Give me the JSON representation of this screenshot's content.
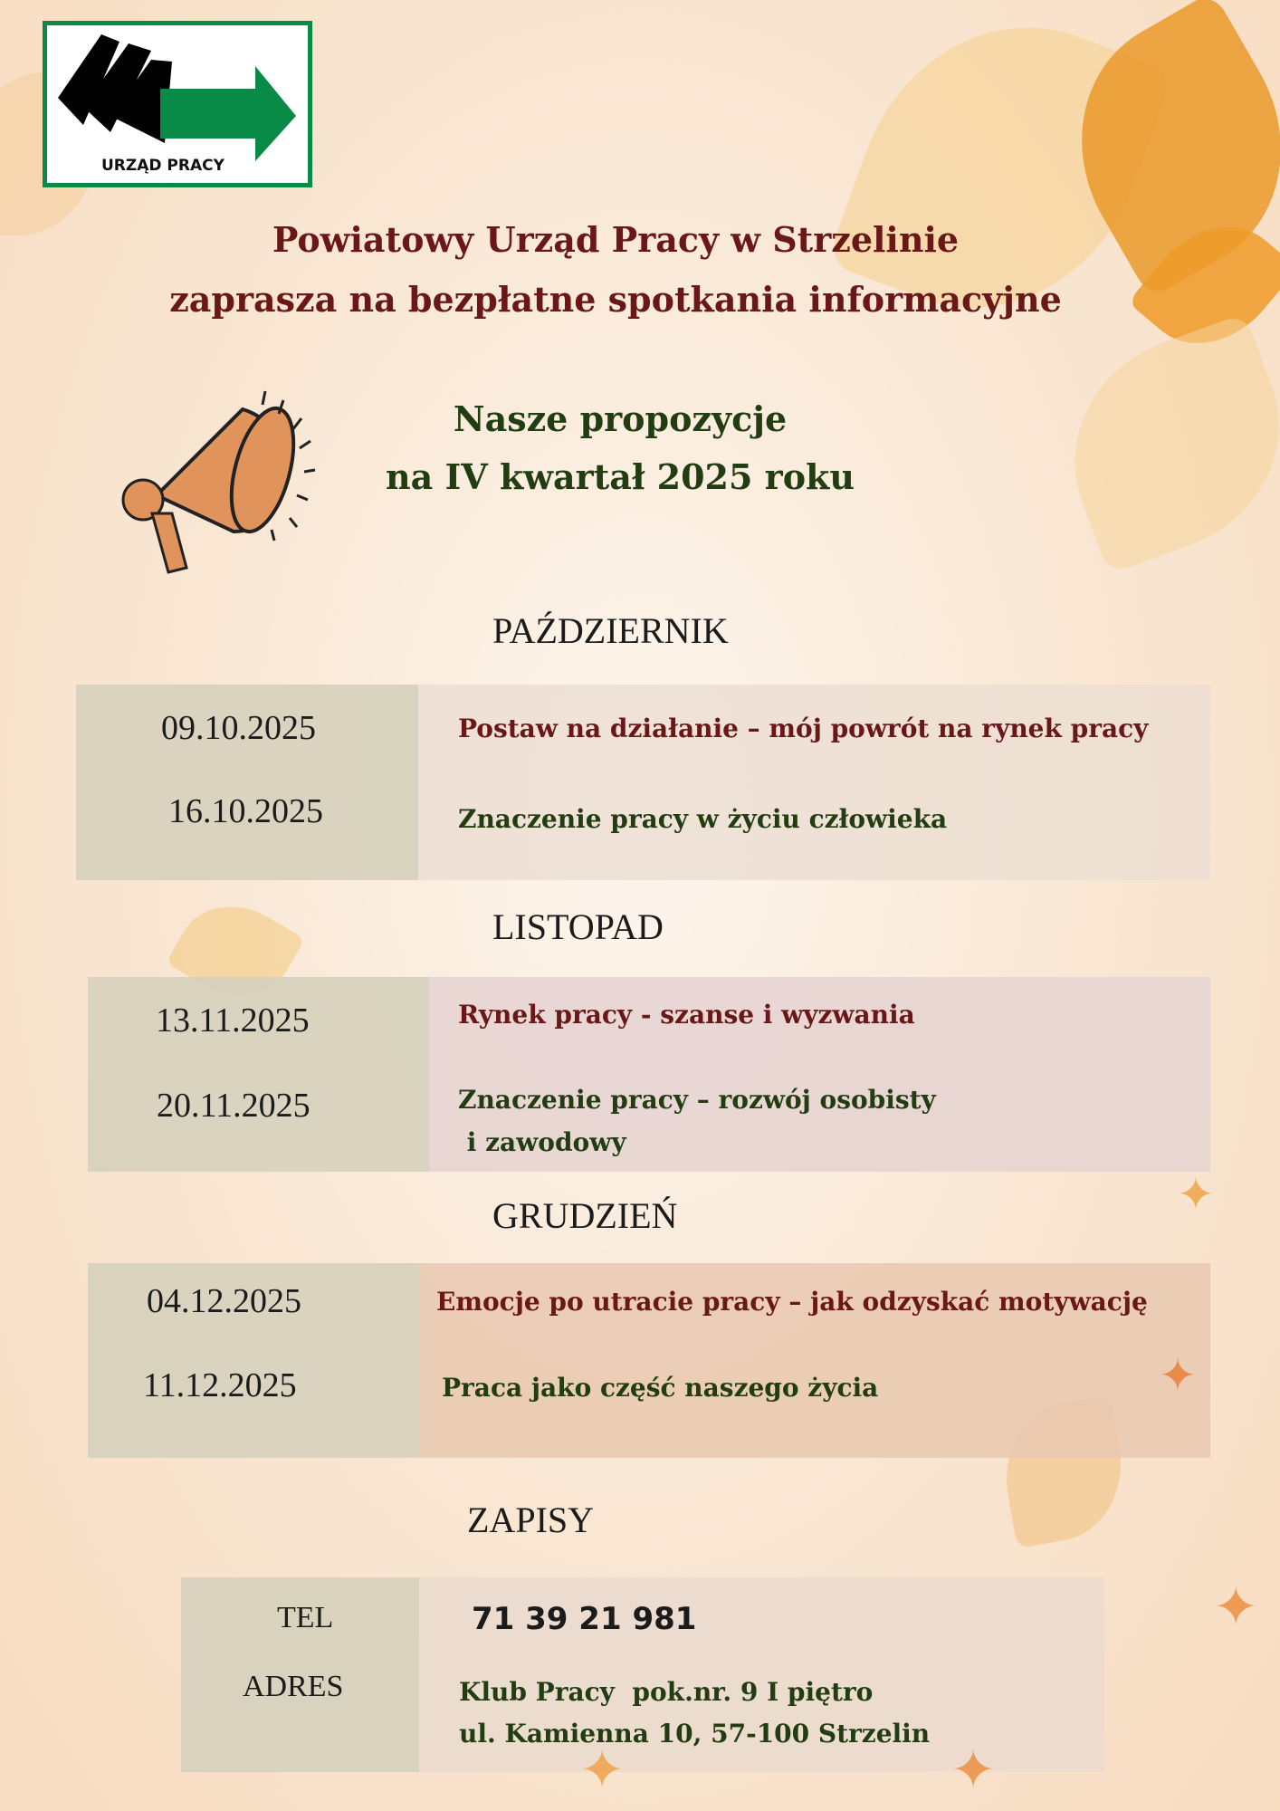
{
  "logo": {
    "text": "URZĄD PRACY",
    "colors": {
      "border": "#0a8a47",
      "arrow": "#0a8a47",
      "shapes": "#000000"
    }
  },
  "header": {
    "line1": "Powiatowy Urząd Pracy w Strzelinie",
    "line2": "zaprasza na bezpłatne spotkania informacyjne"
  },
  "subheader": {
    "line1": "Nasze propozycje",
    "line2": "na IV kwartał 2025 roku"
  },
  "months": [
    {
      "name": "PAŹDZIERNIK",
      "rows": [
        {
          "date": "09.10.2025",
          "topic": "Postaw na działanie – mój powrót na rynek pracy"
        },
        {
          "date": "16.10.2025",
          "topic": "Znaczenie pracy w życiu człowieka"
        }
      ]
    },
    {
      "name": "LISTOPAD",
      "rows": [
        {
          "date": "13.11.2025",
          "topic": "Rynek pracy - szanse i wyzwania"
        },
        {
          "date": "20.11.2025",
          "topic": "Znaczenie pracy – rozwój osobisty",
          "topic2": " i zawodowy"
        }
      ]
    },
    {
      "name": "GRUDZIEŃ",
      "rows": [
        {
          "date": "04.12.2025",
          "topic": "Emocje po utracie pracy – jak odzyskać motywację"
        },
        {
          "date": "11.12.2025",
          "topic": "Praca jako część naszego życia"
        }
      ]
    }
  ],
  "signup": {
    "title": "ZAPISY",
    "tel_label": "TEL",
    "tel": "71 39 21 981",
    "address_label": "ADRES",
    "address1": "Klub Pracy  pok.nr. 9 I piętro",
    "address2": "ul. Kamienna 10, 57-100 Strzelin"
  },
  "colors": {
    "title": "#6a1717",
    "subtitle": "#233d12",
    "megaphone": "#e0935a"
  }
}
